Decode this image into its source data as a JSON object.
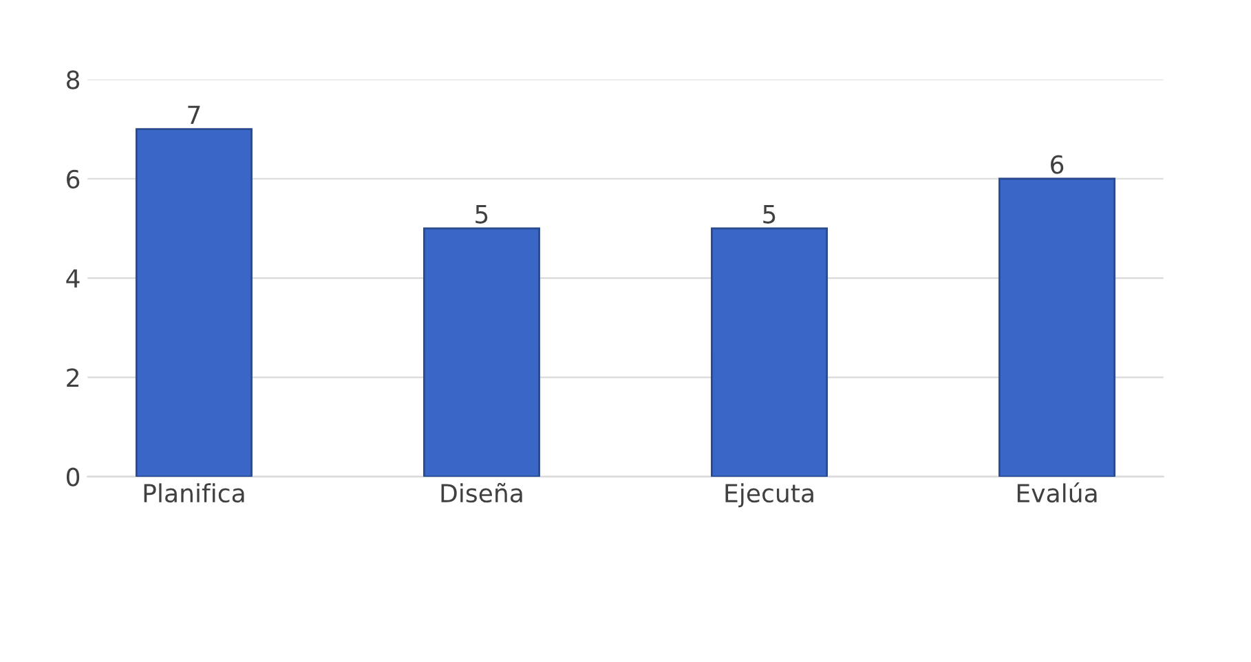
{
  "chart_data": {
    "type": "bar",
    "categories": [
      "Planifica",
      "Diseña",
      "Ejecuta",
      "Evalúa"
    ],
    "values": [
      7,
      5,
      5,
      6
    ],
    "color": "#3a66c8",
    "ylim": [
      0,
      8
    ],
    "yticks": [
      0,
      2,
      4,
      6,
      8
    ],
    "grid": "y",
    "data_labels": true
  }
}
